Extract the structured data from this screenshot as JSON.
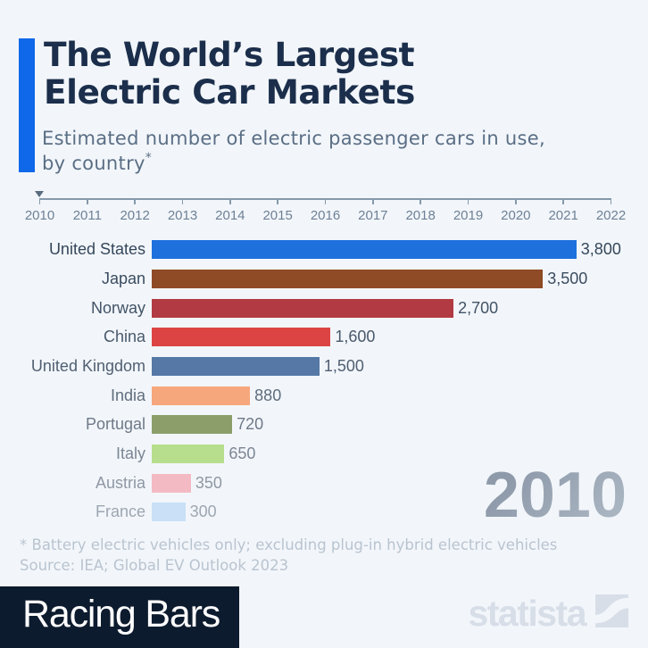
{
  "header": {
    "title_line1": "The World’s Largest",
    "title_line2": "Electric Car Markets",
    "subtitle_line1": "Estimated number of electric passenger cars in use,",
    "subtitle_line2": "by country",
    "subtitle_footnote_mark": "*",
    "accent_color": "#0f68ea"
  },
  "timeline": {
    "years": [
      "2010",
      "2011",
      "2012",
      "2013",
      "2014",
      "2015",
      "2016",
      "2017",
      "2018",
      "2019",
      "2020",
      "2021",
      "2022"
    ],
    "marker_year": "2010"
  },
  "chart_data": {
    "type": "bar",
    "orientation": "horizontal",
    "title": "The World's Largest Electric Car Markets",
    "subtitle": "Estimated number of electric passenger cars in use, by country*",
    "current_year": "2010",
    "xlim": [
      0,
      3800
    ],
    "categories": [
      "United States",
      "Japan",
      "Norway",
      "China",
      "United Kingdom",
      "India",
      "Portugal",
      "Italy",
      "Austria",
      "France"
    ],
    "values": [
      3800,
      3500,
      2700,
      1600,
      1500,
      880,
      720,
      650,
      350,
      300
    ],
    "value_labels": [
      "3,800",
      "3,500",
      "2,700",
      "1,600",
      "1,500",
      "880",
      "720",
      "650",
      "350",
      "300"
    ],
    "bar_colors": [
      "#1e71dd",
      "#8f4a26",
      "#b23a42",
      "#dc4444",
      "#5578a6",
      "#f7a77c",
      "#8c9f6b",
      "#b6de8c",
      "#f3bac3",
      "#c9e0f6"
    ],
    "text_colors": [
      "#35465b",
      "#3b4c60",
      "#425366",
      "#49596c",
      "#505f72",
      "#5f6d7d",
      "#6e7988",
      "#7c8694",
      "#8f98a4",
      "#9da6b1"
    ]
  },
  "footnote": {
    "line1": "* Battery electric vehicles only; excluding plug-in hybrid electric vehicles",
    "line2": "Source: IEA; Global EV Outlook 2023"
  },
  "footer": {
    "tag_label": "Racing Bars",
    "brand_name": "statista"
  },
  "big_year": "2010"
}
